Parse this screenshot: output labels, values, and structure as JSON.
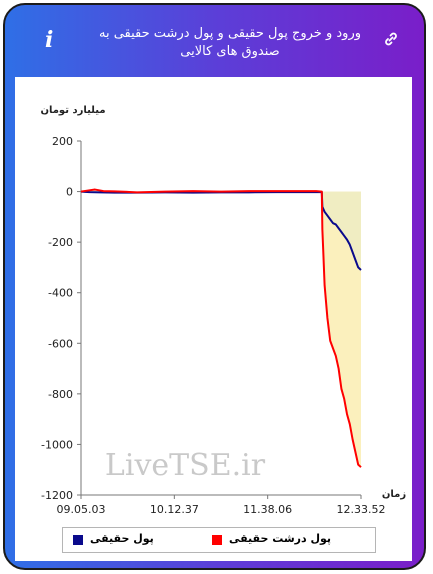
{
  "header": {
    "title": "ورود و خروج پول حقیقی و پول درشت حقیقی به صندوق های کالایی",
    "info_icon": "i",
    "link_icon": "link-icon"
  },
  "watermark": "LiveTSE.ir",
  "colors": {
    "real_money": "#0a0a8c",
    "big_real_money": "#ff0000",
    "fill_real": "#f0edc2",
    "fill_big": "#fbf0bd"
  },
  "chart_data": {
    "type": "line",
    "ylabel": "میلیارد تومان",
    "xlabel": "زمان",
    "ylim": [
      -1200,
      200
    ],
    "yticks": [
      200,
      0,
      -200,
      -400,
      -600,
      -800,
      -1000,
      -1200
    ],
    "xticks": [
      "09.05.03",
      "10.12.37",
      "11.38.06",
      "12.33.52"
    ],
    "grid": false,
    "legend_position": "bottom",
    "series": [
      {
        "name": "پول حقیقی",
        "color": "#0a0a8c",
        "x": [
          0,
          0.03,
          0.07,
          0.12,
          0.2,
          0.3,
          0.4,
          0.5,
          0.6,
          0.7,
          0.78,
          0.84,
          0.86,
          0.862,
          0.87,
          0.88,
          0.89,
          0.9,
          0.91,
          0.92,
          0.93,
          0.94,
          0.95,
          0.96,
          0.97,
          0.98,
          0.99,
          1.0
        ],
        "values": [
          0,
          -2,
          -3,
          -4,
          -4,
          -3,
          -4,
          -3,
          -3,
          -2,
          -2,
          -2,
          -2,
          -60,
          -80,
          -95,
          -110,
          -125,
          -130,
          -145,
          -160,
          -175,
          -190,
          -210,
          -240,
          -270,
          -300,
          -310
        ]
      },
      {
        "name": "پول درشت حقیقی",
        "color": "#ff0000",
        "x": [
          0,
          0.03,
          0.05,
          0.08,
          0.12,
          0.2,
          0.3,
          0.4,
          0.5,
          0.6,
          0.7,
          0.78,
          0.84,
          0.86,
          0.862,
          0.865,
          0.87,
          0.88,
          0.89,
          0.9,
          0.91,
          0.92,
          0.93,
          0.94,
          0.95,
          0.96,
          0.97,
          0.98,
          0.99,
          1.0
        ],
        "values": [
          0,
          5,
          8,
          2,
          1,
          -3,
          0,
          2,
          0,
          2,
          2,
          2,
          2,
          0,
          -150,
          -230,
          -370,
          -500,
          -590,
          -620,
          -650,
          -700,
          -780,
          -820,
          -880,
          -920,
          -980,
          -1030,
          -1080,
          -1090
        ]
      }
    ]
  },
  "legend": [
    {
      "label": "پول حقیقی",
      "color": "#0a0a8c"
    },
    {
      "label": "پول درشت حقیقی",
      "color": "#ff0000"
    }
  ]
}
